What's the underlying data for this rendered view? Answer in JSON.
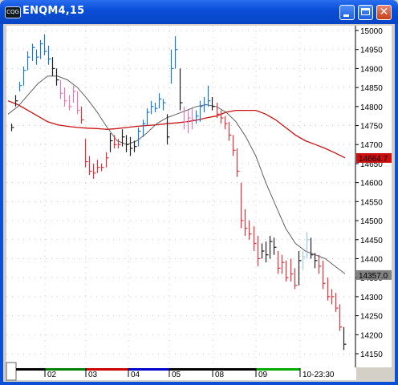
{
  "window": {
    "title": "ENQM4,15",
    "icon": "cqg-app-icon",
    "icon_text": "CQG"
  },
  "chart_data": {
    "type": "bar",
    "symbol": "ENQM4",
    "interval_minutes": 15,
    "ylim": [
      14150,
      15025
    ],
    "y_ticks": [
      "15000",
      "14950",
      "14900",
      "14850",
      "14800",
      "14750",
      "14700",
      "14650",
      "14600",
      "14550",
      "14500",
      "14450",
      "14400",
      "14350",
      "14300",
      "14250",
      "14200",
      "14150"
    ],
    "x_ticks": [
      "02",
      "03",
      "04",
      "05",
      "08",
      "09",
      "10-23:30"
    ],
    "x_tick_colors": [
      "#000000",
      "#008000",
      "#cc0000",
      "#0000cc",
      "#000000",
      "#000000",
      "#00aa00"
    ],
    "last_price_label": "14357.0",
    "long_ma_label": "14664.7",
    "colors": {
      "up_bar": "#1e78d6",
      "down_bar": "#e8303a",
      "pink_bar": "#e878b0",
      "neutral_bar": "#202020",
      "light_blue_bar": "#9ec6ee",
      "long_ma": "#cc1010",
      "short_ma": "#606060",
      "last_price_bg": "#808080",
      "long_ma_bg": "#cc1010"
    },
    "grid": true,
    "series": [
      {
        "kind": "ohlc",
        "bars": [
          {
            "h": 14755,
            "l": 14735,
            "c": 14745,
            "color": "neutral"
          },
          {
            "h": 14830,
            "l": 14800,
            "c": 14815,
            "color": "neutral"
          },
          {
            "h": 14865,
            "l": 14840,
            "c": 14855,
            "color": "up"
          },
          {
            "h": 14905,
            "l": 14855,
            "c": 14895,
            "color": "up"
          },
          {
            "h": 14945,
            "l": 14895,
            "c": 14930,
            "color": "up"
          },
          {
            "h": 14965,
            "l": 14920,
            "c": 14955,
            "color": "up"
          },
          {
            "h": 14950,
            "l": 14910,
            "c": 14930,
            "color": "up"
          },
          {
            "h": 14975,
            "l": 14925,
            "c": 14965,
            "color": "up"
          },
          {
            "h": 14990,
            "l": 14935,
            "c": 14945,
            "color": "up"
          },
          {
            "h": 14960,
            "l": 14910,
            "c": 14925,
            "color": "up"
          },
          {
            "h": 14930,
            "l": 14880,
            "c": 14900,
            "color": "neutral"
          },
          {
            "h": 14900,
            "l": 14855,
            "c": 14870,
            "color": "neutral"
          },
          {
            "h": 14870,
            "l": 14820,
            "c": 14835,
            "color": "pink"
          },
          {
            "h": 14850,
            "l": 14800,
            "c": 14815,
            "color": "pink"
          },
          {
            "h": 14830,
            "l": 14790,
            "c": 14800,
            "color": "pink"
          },
          {
            "h": 14855,
            "l": 14810,
            "c": 14840,
            "color": "pink"
          },
          {
            "h": 14840,
            "l": 14780,
            "c": 14790,
            "color": "pink"
          },
          {
            "h": 14800,
            "l": 14755,
            "c": 14765,
            "color": "down"
          },
          {
            "h": 14715,
            "l": 14640,
            "c": 14655,
            "color": "down"
          },
          {
            "h": 14670,
            "l": 14620,
            "c": 14630,
            "color": "down"
          },
          {
            "h": 14650,
            "l": 14610,
            "c": 14625,
            "color": "down"
          },
          {
            "h": 14660,
            "l": 14625,
            "c": 14640,
            "color": "down"
          },
          {
            "h": 14650,
            "l": 14630,
            "c": 14640,
            "color": "down"
          },
          {
            "h": 14680,
            "l": 14640,
            "c": 14665,
            "color": "down"
          },
          {
            "h": 14730,
            "l": 14680,
            "c": 14710,
            "color": "neutral"
          },
          {
            "h": 14725,
            "l": 14690,
            "c": 14700,
            "color": "down"
          },
          {
            "h": 14715,
            "l": 14690,
            "c": 14700,
            "color": "down"
          },
          {
            "h": 14740,
            "l": 14695,
            "c": 14720,
            "color": "neutral"
          },
          {
            "h": 14725,
            "l": 14680,
            "c": 14700,
            "color": "neutral"
          },
          {
            "h": 14720,
            "l": 14670,
            "c": 14690,
            "color": "neutral"
          },
          {
            "h": 14710,
            "l": 14680,
            "c": 14695,
            "color": "neutral"
          },
          {
            "h": 14745,
            "l": 14695,
            "c": 14735,
            "color": "up"
          },
          {
            "h": 14765,
            "l": 14720,
            "c": 14755,
            "color": "up"
          },
          {
            "h": 14795,
            "l": 14750,
            "c": 14785,
            "color": "up"
          },
          {
            "h": 14815,
            "l": 14780,
            "c": 14800,
            "color": "up"
          },
          {
            "h": 14810,
            "l": 14785,
            "c": 14795,
            "color": "up"
          },
          {
            "h": 14835,
            "l": 14795,
            "c": 14820,
            "color": "up"
          },
          {
            "h": 14820,
            "l": 14790,
            "c": 14810,
            "color": "up"
          },
          {
            "h": 14780,
            "l": 14700,
            "c": 14720,
            "color": "neutral"
          },
          {
            "h": 14950,
            "l": 14860,
            "c": 14900,
            "color": "up"
          },
          {
            "h": 14985,
            "l": 14900,
            "c": 14950,
            "color": "up"
          },
          {
            "h": 14900,
            "l": 14790,
            "c": 14810,
            "color": "neutral"
          },
          {
            "h": 14800,
            "l": 14740,
            "c": 14760,
            "color": "pink"
          },
          {
            "h": 14790,
            "l": 14730,
            "c": 14770,
            "color": "pink"
          },
          {
            "h": 14795,
            "l": 14740,
            "c": 14765,
            "color": "pink"
          },
          {
            "h": 14790,
            "l": 14755,
            "c": 14775,
            "color": "up"
          },
          {
            "h": 14815,
            "l": 14760,
            "c": 14800,
            "color": "up"
          },
          {
            "h": 14825,
            "l": 14785,
            "c": 14805,
            "color": "up"
          },
          {
            "h": 14855,
            "l": 14800,
            "c": 14815,
            "color": "up"
          },
          {
            "h": 14825,
            "l": 14790,
            "c": 14800,
            "color": "neutral"
          },
          {
            "h": 14810,
            "l": 14770,
            "c": 14780,
            "color": "down"
          },
          {
            "h": 14790,
            "l": 14755,
            "c": 14770,
            "color": "down"
          },
          {
            "h": 14775,
            "l": 14740,
            "c": 14755,
            "color": "down"
          },
          {
            "h": 14760,
            "l": 14710,
            "c": 14725,
            "color": "down"
          },
          {
            "h": 14725,
            "l": 14670,
            "c": 14685,
            "color": "down"
          },
          {
            "h": 14690,
            "l": 14615,
            "c": 14630,
            "color": "down"
          },
          {
            "h": 14600,
            "l": 14480,
            "c": 14500,
            "color": "down"
          },
          {
            "h": 14530,
            "l": 14460,
            "c": 14480,
            "color": "down"
          },
          {
            "h": 14500,
            "l": 14450,
            "c": 14465,
            "color": "down"
          },
          {
            "h": 14485,
            "l": 14420,
            "c": 14440,
            "color": "down"
          },
          {
            "h": 14460,
            "l": 14380,
            "c": 14400,
            "color": "down"
          },
          {
            "h": 14440,
            "l": 14400,
            "c": 14420,
            "color": "neutral"
          },
          {
            "h": 14445,
            "l": 14390,
            "c": 14410,
            "color": "neutral"
          },
          {
            "h": 14460,
            "l": 14400,
            "c": 14445,
            "color": "neutral"
          },
          {
            "h": 14455,
            "l": 14410,
            "c": 14430,
            "color": "neutral"
          },
          {
            "h": 14420,
            "l": 14360,
            "c": 14375,
            "color": "down"
          },
          {
            "h": 14410,
            "l": 14360,
            "c": 14390,
            "color": "down"
          },
          {
            "h": 14395,
            "l": 14340,
            "c": 14350,
            "color": "down"
          },
          {
            "h": 14400,
            "l": 14340,
            "c": 14360,
            "color": "down"
          },
          {
            "h": 14375,
            "l": 14320,
            "c": 14330,
            "color": "down"
          },
          {
            "h": 14420,
            "l": 14330,
            "c": 14395,
            "color": "neutral"
          },
          {
            "h": 14420,
            "l": 14370,
            "c": 14405,
            "color": "light_blue"
          },
          {
            "h": 14470,
            "l": 14400,
            "c": 14450,
            "color": "light_blue"
          },
          {
            "h": 14455,
            "l": 14400,
            "c": 14410,
            "color": "neutral"
          },
          {
            "h": 14415,
            "l": 14375,
            "c": 14395,
            "color": "neutral"
          },
          {
            "h": 14410,
            "l": 14360,
            "c": 14380,
            "color": "down"
          },
          {
            "h": 14395,
            "l": 14320,
            "c": 14335,
            "color": "down"
          },
          {
            "h": 14350,
            "l": 14290,
            "c": 14300,
            "color": "down"
          },
          {
            "h": 14320,
            "l": 14280,
            "c": 14300,
            "color": "down"
          },
          {
            "h": 14310,
            "l": 14260,
            "c": 14270,
            "color": "down"
          },
          {
            "h": 14280,
            "l": 14210,
            "c": 14220,
            "color": "down"
          },
          {
            "h": 14220,
            "l": 14160,
            "c": 14175,
            "color": "neutral"
          }
        ]
      },
      {
        "name": "",
        "kind": "line",
        "color": "long_ma",
        "values": [
          14815,
          14805,
          14790,
          14775,
          14760,
          14752,
          14748,
          14745,
          14743,
          14742,
          14740,
          14742,
          14745,
          14748,
          14750,
          14752,
          14755,
          14757,
          14760,
          14764,
          14770,
          14775,
          14785,
          14790,
          14790,
          14790,
          14780,
          14765,
          14745,
          14725,
          14710,
          14700,
          14690,
          14678,
          14665
        ]
      },
      {
        "name": "",
        "kind": "line",
        "color": "short_ma",
        "values": [
          14780,
          14800,
          14830,
          14860,
          14880,
          14880,
          14870,
          14850,
          14820,
          14785,
          14745,
          14710,
          14700,
          14710,
          14730,
          14755,
          14770,
          14780,
          14790,
          14800,
          14805,
          14800,
          14785,
          14760,
          14720,
          14670,
          14600,
          14540,
          14480,
          14440,
          14420,
          14410,
          14400,
          14380,
          14360
        ]
      }
    ]
  }
}
